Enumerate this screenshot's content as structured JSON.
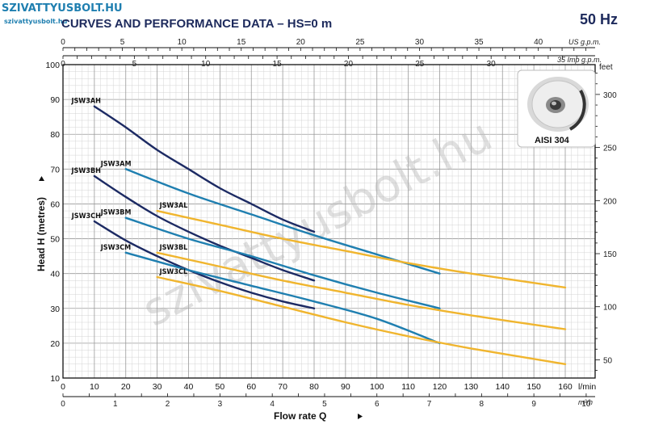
{
  "header": {
    "brand": "SZIVATTYUSBOLT.HU",
    "brand_sub": "szivattyusbolt.hu",
    "title": "CURVES AND PERFORMANCE DATA – HS=0 m",
    "frequency": "50 Hz"
  },
  "watermark": "szivattyusbolt.hu",
  "inset": {
    "label": "AISI 304"
  },
  "chart_data": {
    "type": "line",
    "title": "CURVES AND PERFORMANCE DATA – HS=0 m",
    "xlabel": "Flow rate Q",
    "ylabel": "Head H (metres)",
    "xlim": [
      0,
      165
    ],
    "ylim": [
      10,
      100
    ],
    "x_unit": "l/min",
    "grid": true,
    "y_ticks": [
      10,
      20,
      30,
      40,
      50,
      60,
      70,
      80,
      90,
      100
    ],
    "x_ticks": [
      0,
      10,
      20,
      30,
      40,
      50,
      60,
      70,
      80,
      90,
      100,
      110,
      120,
      130,
      140,
      150,
      160
    ],
    "secondary_axes": {
      "m3h": {
        "unit": "m³/h",
        "ticks": [
          0,
          1,
          2,
          3,
          4,
          5,
          6,
          7,
          8,
          9,
          10
        ]
      },
      "us_gpm": {
        "unit": "US g.p.m.",
        "ticks": [
          0,
          5,
          10,
          15,
          20,
          25,
          30,
          35,
          40
        ]
      },
      "imp_gpm": {
        "unit": "35 Imp g.p.m.",
        "ticks": [
          0,
          5,
          10,
          15,
          20,
          25,
          30
        ]
      },
      "feet": {
        "unit": "feet",
        "ticks": [
          50,
          100,
          150,
          200,
          250,
          300
        ]
      }
    },
    "series": [
      {
        "name": "JSW3AH",
        "color": "#1c2a63",
        "x": [
          10,
          20,
          30,
          40,
          50,
          60,
          70,
          80
        ],
        "y": [
          88,
          82,
          75.5,
          70,
          64.5,
          60,
          55.5,
          52
        ]
      },
      {
        "name": "JSW3AM",
        "color": "#1f7fb0",
        "x": [
          20,
          40,
          60,
          80,
          100,
          120
        ],
        "y": [
          70,
          63,
          57,
          51,
          45.5,
          40
        ]
      },
      {
        "name": "JSW3AL",
        "color": "#f0b52e",
        "x": [
          30,
          50,
          70,
          90,
          110,
          130,
          160
        ],
        "y": [
          58,
          54,
          50,
          46.5,
          43,
          40,
          36
        ]
      },
      {
        "name": "JSW3BH",
        "color": "#1c2a63",
        "x": [
          10,
          20,
          30,
          40,
          50,
          60,
          70,
          80
        ],
        "y": [
          68,
          62,
          56.5,
          52,
          48,
          44.5,
          41,
          38
        ]
      },
      {
        "name": "JSW3BM",
        "color": "#1f7fb0",
        "x": [
          20,
          40,
          60,
          80,
          100,
          120
        ],
        "y": [
          56,
          50,
          45,
          39.5,
          34.5,
          30
        ]
      },
      {
        "name": "JSW3BL",
        "color": "#f0b52e",
        "x": [
          30,
          50,
          70,
          90,
          110,
          130,
          160
        ],
        "y": [
          46,
          42,
          38,
          34.5,
          31,
          28,
          24
        ]
      },
      {
        "name": "JSW3CH",
        "color": "#1c2a63",
        "x": [
          10,
          20,
          30,
          40,
          50,
          60,
          70,
          80
        ],
        "y": [
          55,
          49.5,
          45,
          41,
          37.5,
          34.5,
          32,
          30
        ]
      },
      {
        "name": "JSW3CM",
        "color": "#1f7fb0",
        "x": [
          20,
          40,
          60,
          80,
          100,
          120
        ],
        "y": [
          46,
          41,
          36.5,
          32,
          27,
          20
        ]
      },
      {
        "name": "JSW3CL",
        "color": "#f0b52e",
        "x": [
          30,
          50,
          70,
          90,
          110,
          130,
          160
        ],
        "y": [
          39,
          35,
          30.5,
          26,
          22,
          18.5,
          14
        ]
      }
    ]
  }
}
